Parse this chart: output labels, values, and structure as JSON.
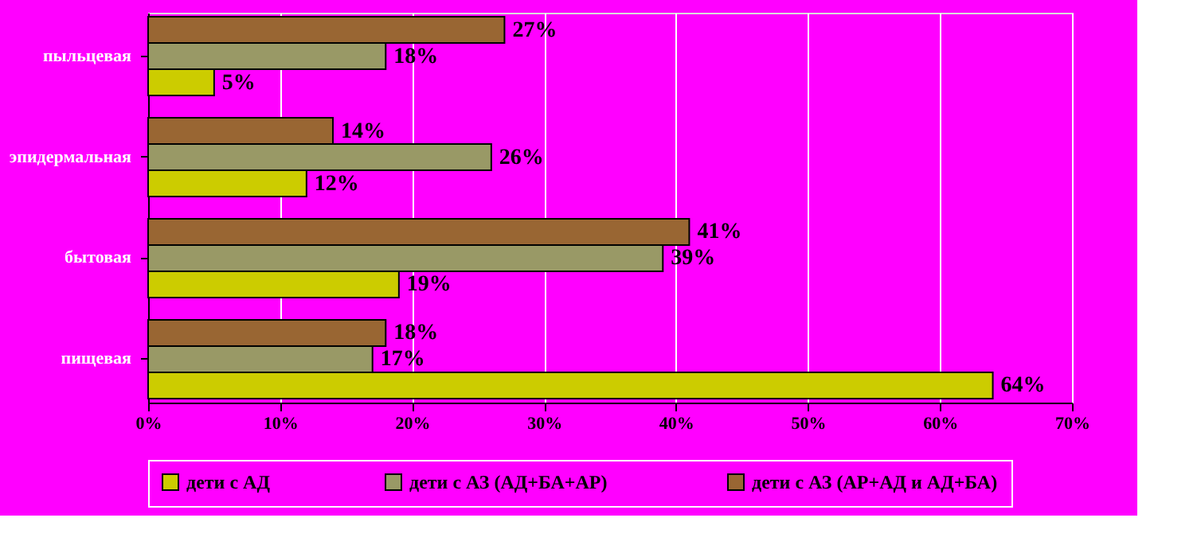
{
  "chart_data": {
    "type": "bar",
    "orientation": "horizontal",
    "categories": [
      "пыльцевая",
      "эпидермальная",
      "бытовая",
      "пищевая"
    ],
    "series": [
      {
        "name": "дети с АД",
        "color": "#cccc00",
        "values": [
          5,
          12,
          19,
          64
        ],
        "value_labels": [
          "5%",
          "12%",
          "19%",
          "64%"
        ]
      },
      {
        "name": "дети с  АЗ (АД+БА+АР)",
        "color": "#999966",
        "values": [
          18,
          26,
          39,
          17
        ],
        "value_labels": [
          "18%",
          "26%",
          "39%",
          "17%"
        ]
      },
      {
        "name": "дети с АЗ (АР+АД и АД+БА)",
        "color": "#996633",
        "values": [
          27,
          14,
          41,
          18
        ],
        "value_labels": [
          "27%",
          "14%",
          "41%",
          "18%"
        ]
      }
    ],
    "xlim": [
      0,
      70
    ],
    "xticks": [
      {
        "value": 0,
        "label": "0%"
      },
      {
        "value": 10,
        "label": "10%"
      },
      {
        "value": 20,
        "label": "20%"
      },
      {
        "value": 30,
        "label": "30%"
      },
      {
        "value": 40,
        "label": "40%"
      },
      {
        "value": 50,
        "label": "50%"
      },
      {
        "value": 60,
        "label": "60%"
      },
      {
        "value": 70,
        "label": "70%"
      }
    ],
    "grid": "x",
    "legend": "bottom"
  }
}
